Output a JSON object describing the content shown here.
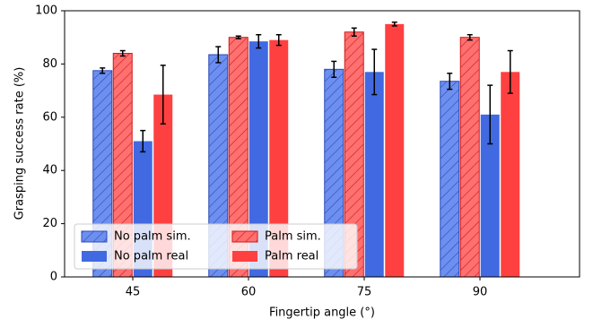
{
  "chart_data": {
    "type": "bar",
    "xlabel": "Fingertip angle (°)",
    "ylabel": "Grasping success rate (%)",
    "categories": [
      "45",
      "60",
      "75",
      "90"
    ],
    "series": [
      {
        "name": "No palm sim.",
        "color": "#4169e1",
        "hatch": true,
        "values": [
          77.5,
          83.5,
          78,
          73.5
        ],
        "errors": [
          1,
          3,
          3,
          3
        ]
      },
      {
        "name": "Palm sim.",
        "color": "#ff4040",
        "hatch": true,
        "values": [
          84,
          90,
          92,
          90
        ],
        "errors": [
          1,
          0.5,
          1.5,
          1
        ]
      },
      {
        "name": "No palm real",
        "color": "#4169e1",
        "hatch": false,
        "values": [
          51,
          88.5,
          77,
          61
        ],
        "errors": [
          4,
          2.5,
          8.5,
          11
        ]
      },
      {
        "name": "Palm real",
        "color": "#ff4040",
        "hatch": false,
        "values": [
          68.5,
          89,
          95,
          77
        ],
        "errors": [
          11,
          2,
          0.7,
          8
        ]
      }
    ],
    "ylim": [
      0,
      100
    ],
    "yticks": [
      0,
      20,
      40,
      60,
      80,
      100
    ],
    "legend": "lower left"
  }
}
